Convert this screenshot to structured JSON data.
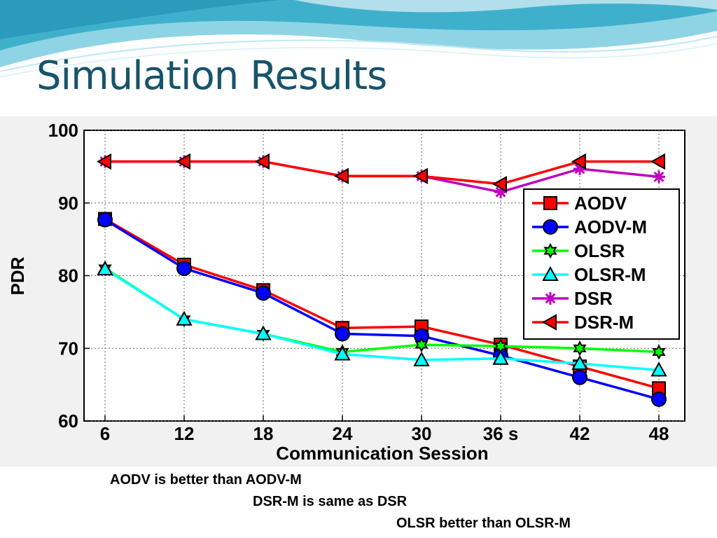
{
  "slide": {
    "title": "Simulation Results",
    "notes": [
      "AODV is better than AODV-M",
      "DSR-M is same as DSR",
      "OLSR better than OLSR-M"
    ]
  },
  "chart_data": {
    "type": "line",
    "title": "",
    "xlabel": "Communication Session",
    "ylabel": "PDR",
    "categories": [
      "6",
      "12",
      "18",
      "24",
      "30",
      "36 s",
      "42",
      "48"
    ],
    "ylim": [
      60,
      100
    ],
    "yticks": [
      60,
      70,
      80,
      90,
      100
    ],
    "grid": true,
    "legend_position": "right",
    "series": [
      {
        "name": "AODV",
        "color": "#ff0000",
        "marker": "square",
        "values": [
          87.8,
          81.5,
          78.0,
          72.8,
          73.0,
          70.5,
          67.5,
          64.5
        ]
      },
      {
        "name": "AODV-M",
        "color": "#0000ff",
        "marker": "circle",
        "values": [
          87.7,
          81.0,
          77.6,
          72.0,
          71.7,
          69.0,
          66.0,
          63.0
        ]
      },
      {
        "name": "OLSR",
        "color": "#00ff00",
        "marker": "hexagram",
        "values": [
          81.0,
          74.0,
          72.0,
          69.5,
          70.5,
          70.3,
          70.0,
          69.5
        ]
      },
      {
        "name": "OLSR-M",
        "color": "#00ffff",
        "marker": "triangle-up",
        "values": [
          80.9,
          74.0,
          72.0,
          69.2,
          68.4,
          68.6,
          67.9,
          67.0
        ]
      },
      {
        "name": "DSR",
        "color": "#bf00bf",
        "marker": "asterisk",
        "values": [
          95.7,
          95.7,
          95.7,
          93.7,
          93.7,
          91.5,
          94.7,
          93.6
        ]
      },
      {
        "name": "DSR-M",
        "color": "#ff0000",
        "marker": "triangle-left",
        "values": [
          95.7,
          95.7,
          95.7,
          93.7,
          93.7,
          92.6,
          95.7,
          95.7
        ]
      }
    ]
  }
}
